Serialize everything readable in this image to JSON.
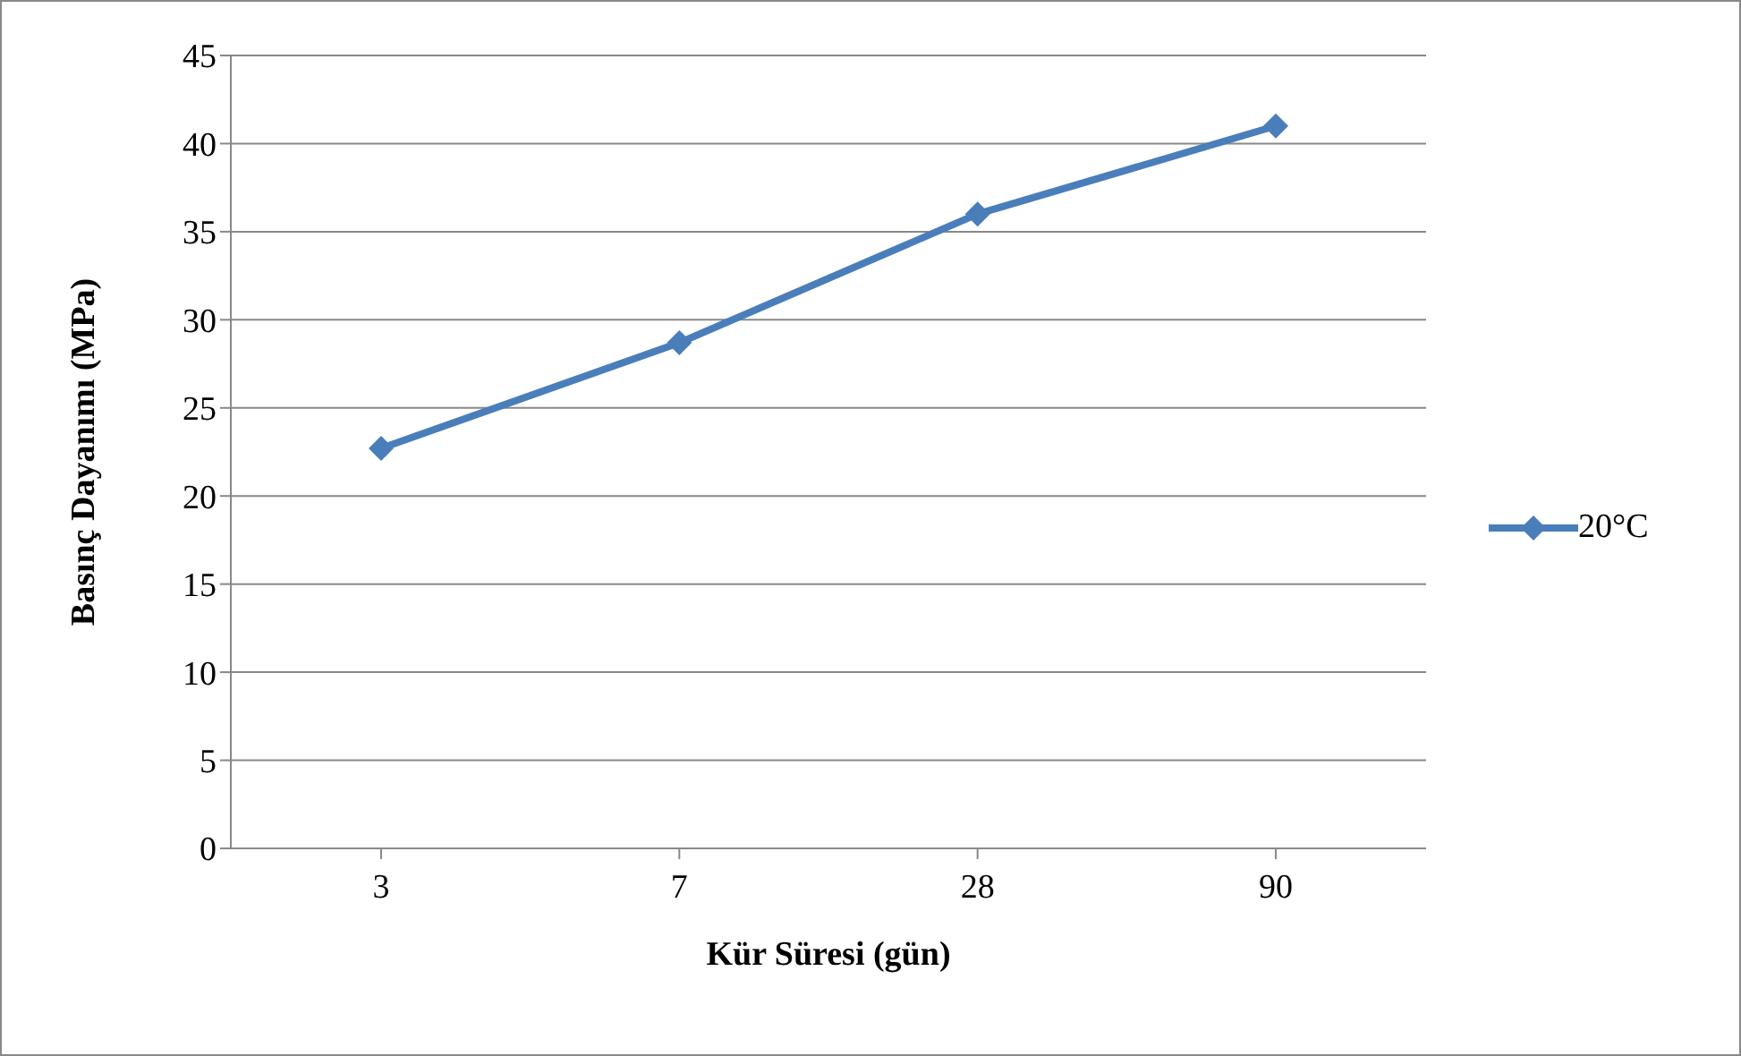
{
  "chart_data": {
    "type": "line",
    "xlabel": "Kür Süresi (gün)",
    "ylabel": "Basınç Dayanımı (MPa)",
    "categories": [
      "3",
      "7",
      "28",
      "90"
    ],
    "series": [
      {
        "name": "20°C",
        "color": "#4a7ebb",
        "values": [
          22.7,
          28.7,
          36,
          41
        ]
      }
    ],
    "ylim": [
      0,
      45
    ],
    "yticks": [
      0,
      5,
      10,
      15,
      20,
      25,
      30,
      35,
      40,
      45
    ],
    "grid": "y",
    "legend": "right",
    "marker": "diamond",
    "line_style": "solid"
  }
}
